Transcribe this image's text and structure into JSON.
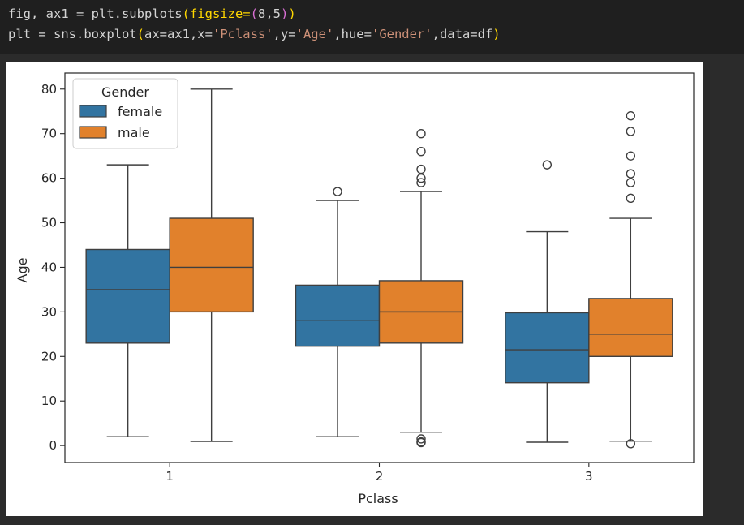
{
  "code": {
    "line1": {
      "p1": "fig, ax1 = plt.subplots",
      "p2": "(figsize=",
      "p3": "(",
      "p4": "8,5",
      "p5": ")",
      "p6": ")"
    },
    "line2": {
      "p1": "plt = sns.boxplot",
      "p2": "(",
      "p3": "ax=ax1,x=",
      "s1": "'Pclass'",
      "p4": ",y=",
      "s2": "'Age'",
      "p5": ",hue=",
      "s3": "'Gender'",
      "p6": ",data=df",
      "p7": ")"
    }
  },
  "chart_data": {
    "type": "box",
    "xlabel": "Pclass",
    "ylabel": "Age",
    "categories": [
      "1",
      "2",
      "3"
    ],
    "ylim": [
      -3.8,
      83.6
    ],
    "yticks": [
      0,
      10,
      20,
      30,
      40,
      50,
      60,
      70,
      80
    ],
    "legend": {
      "title": "Gender",
      "placement": "top-left"
    },
    "series": [
      {
        "name": "female",
        "color": "#3274a1",
        "boxes": [
          {
            "category": "1",
            "whisker_low": 2,
            "q1": 23,
            "median": 35,
            "q3": 44,
            "whisker_high": 63,
            "outliers": []
          },
          {
            "category": "2",
            "whisker_low": 2,
            "q1": 22.3,
            "median": 28,
            "q3": 36,
            "whisker_high": 55,
            "outliers": [
              57
            ]
          },
          {
            "category": "3",
            "whisker_low": 0.75,
            "q1": 14.1,
            "median": 21.5,
            "q3": 29.8,
            "whisker_high": 48,
            "outliers": [
              63
            ]
          }
        ]
      },
      {
        "name": "male",
        "color": "#e1812c",
        "boxes": [
          {
            "category": "1",
            "whisker_low": 0.92,
            "q1": 30,
            "median": 40,
            "q3": 51,
            "whisker_high": 80,
            "outliers": []
          },
          {
            "category": "2",
            "whisker_low": 3,
            "q1": 23,
            "median": 30,
            "q3": 37,
            "whisker_high": 57,
            "outliers": [
              0.67,
              0.83,
              1.5,
              59,
              60,
              62,
              66,
              70
            ]
          },
          {
            "category": "3",
            "whisker_low": 1,
            "q1": 20,
            "median": 25,
            "q3": 33,
            "whisker_high": 51,
            "outliers": [
              0.42,
              55.5,
              59,
              61,
              65,
              70.5,
              74
            ]
          }
        ]
      }
    ]
  }
}
